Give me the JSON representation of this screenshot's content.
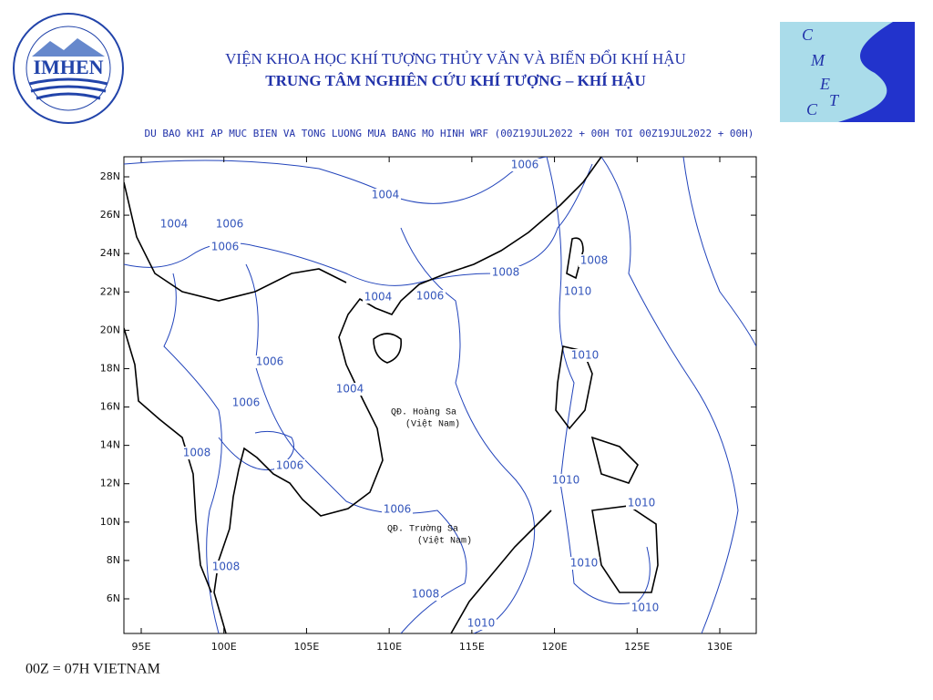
{
  "header": {
    "institute": "VIỆN KHOA HỌC KHÍ TƯỢNG THỦY VĂN VÀ BIẾN ĐỔI KHÍ HẬU",
    "center": "TRUNG TÂM NGHIÊN CỨU KHÍ TƯỢNG – KHÍ HẬU"
  },
  "logos": {
    "imhen": "IMHEN",
    "cmetc": [
      "C",
      "M",
      "E",
      "T",
      "C"
    ]
  },
  "map": {
    "title": "DU BAO KHI AP MUC BIEN VA TONG LUONG MUA BANG MO HINH WRF (00Z19JUL2022 + 00H TOI 00Z19JUL2022 + 00H)",
    "lat_ticks": [
      {
        "value": 28,
        "label": "28N"
      },
      {
        "value": 26,
        "label": "26N"
      },
      {
        "value": 24,
        "label": "24N"
      },
      {
        "value": 22,
        "label": "22N"
      },
      {
        "value": 20,
        "label": "20N"
      },
      {
        "value": 18,
        "label": "18N"
      },
      {
        "value": 16,
        "label": "16N"
      },
      {
        "value": 14,
        "label": "14N"
      },
      {
        "value": 12,
        "label": "12N"
      },
      {
        "value": 10,
        "label": "10N"
      },
      {
        "value": 8,
        "label": "8N"
      },
      {
        "value": 6,
        "label": "6N"
      }
    ],
    "lon_ticks": [
      {
        "value": 95,
        "label": "95E"
      },
      {
        "value": 100,
        "label": "100E"
      },
      {
        "value": 105,
        "label": "105E"
      },
      {
        "value": 110,
        "label": "110E"
      },
      {
        "value": 115,
        "label": "115E"
      },
      {
        "value": 120,
        "label": "120E"
      },
      {
        "value": 125,
        "label": "125E"
      },
      {
        "value": 130,
        "label": "130E"
      }
    ],
    "contour_labels": [
      "1006",
      "1004",
      "1004",
      "1006",
      "1006",
      "1008",
      "1008",
      "1010",
      "1004",
      "1006",
      "1010",
      "1006",
      "1004",
      "1006",
      "1008",
      "1006",
      "1010",
      "1010",
      "1006",
      "1010",
      "1008",
      "1008",
      "1010",
      "1010"
    ],
    "places": [
      "QĐ. Hoàng Sa",
      "(Việt Nam)",
      "QĐ. Trường Sa",
      "(Việt Nam)"
    ]
  },
  "footer": "00Z = 07H VIETNAM"
}
